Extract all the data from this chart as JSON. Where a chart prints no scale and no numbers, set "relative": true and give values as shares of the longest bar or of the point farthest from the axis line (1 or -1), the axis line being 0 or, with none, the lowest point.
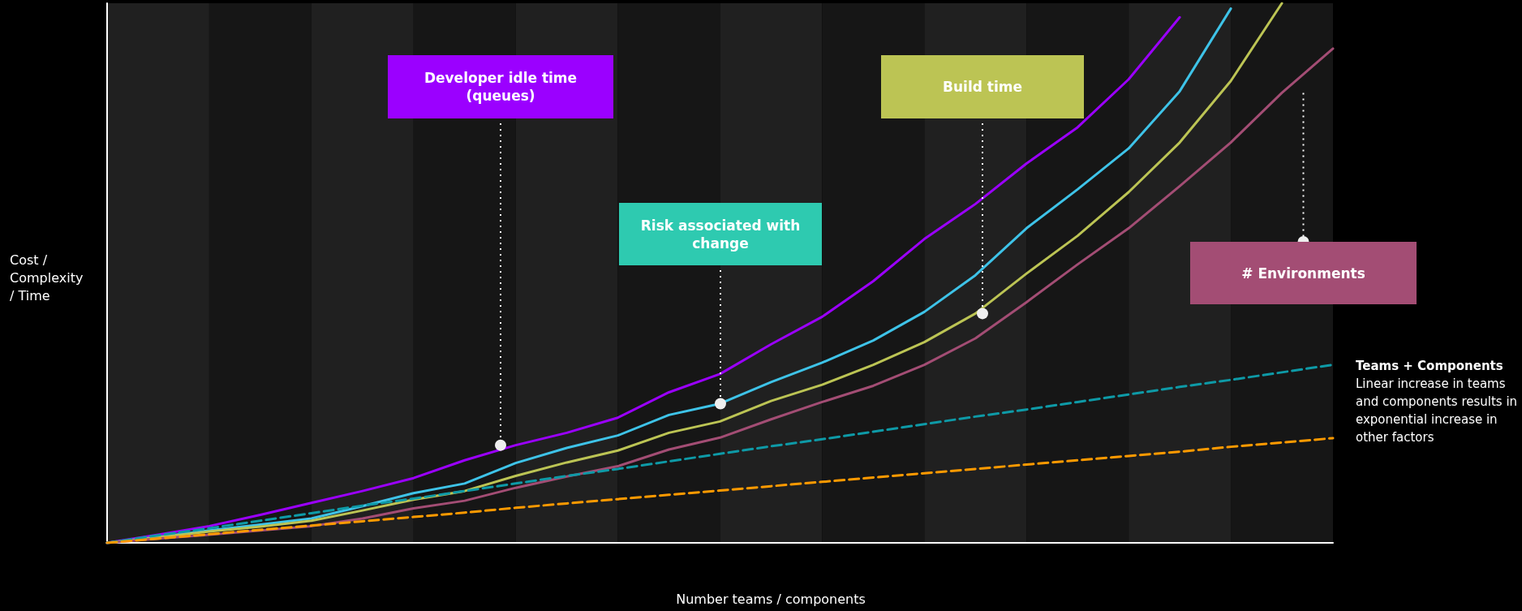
{
  "chart_data": {
    "type": "line",
    "relative": true,
    "xlabel": "Number teams / components",
    "ylabel": "Cost / Complexity / Time",
    "marker": "none",
    "categories": [
      null,
      null,
      null,
      null,
      null,
      null,
      null,
      null,
      null,
      null,
      null,
      null,
      null,
      null,
      null,
      null,
      null,
      null,
      null,
      null,
      null,
      null,
      null,
      null,
      null
    ],
    "series": [
      {
        "color": "#9b00ff",
        "values": [
          0,
          0.015,
          0.031,
          0.052,
          0.074,
          0.096,
          0.12,
          0.153,
          0.181,
          0.204,
          0.232,
          0.279,
          0.313,
          0.368,
          0.419,
          0.485,
          0.563,
          0.628,
          0.703,
          0.77,
          0.859,
          0.974,
          null,
          null,
          null
        ]
      },
      {
        "color": "#3ec3e8",
        "values": [
          0,
          0.011,
          0.023,
          0.034,
          0.045,
          0.068,
          0.092,
          0.11,
          0.148,
          0.176,
          0.199,
          0.237,
          0.258,
          0.298,
          0.334,
          0.375,
          0.428,
          0.496,
          0.583,
          0.655,
          0.731,
          0.837,
          0.99,
          null,
          null
        ]
      },
      {
        "color": "#bcc454",
        "values": [
          0,
          0.01,
          0.021,
          0.03,
          0.041,
          0.06,
          0.08,
          0.096,
          0.124,
          0.149,
          0.171,
          0.204,
          0.225,
          0.263,
          0.293,
          0.33,
          0.372,
          0.425,
          0.499,
          0.569,
          0.65,
          0.742,
          0.856,
          1,
          null
        ]
      },
      {
        "color": "#a34d74",
        "values": [
          0,
          0.008,
          0.015,
          0.023,
          0.031,
          0.045,
          0.064,
          0.078,
          0.102,
          0.123,
          0.142,
          0.173,
          0.195,
          0.229,
          0.261,
          0.291,
          0.33,
          0.379,
          0.446,
          0.516,
          0.583,
          0.661,
          0.742,
          0.834,
          0.916
        ]
      },
      {
        "color": "#0e9aa7",
        "line_style": "dashed",
        "values": [
          0,
          0.014,
          0.027,
          0.041,
          0.055,
          0.069,
          0.082,
          0.096,
          0.11,
          0.124,
          0.137,
          0.151,
          0.165,
          0.179,
          0.192,
          0.206,
          0.22,
          0.234,
          0.247,
          0.261,
          0.275,
          0.289,
          0.302,
          0.316,
          0.33
        ]
      },
      {
        "color": "#ff9a00",
        "line_style": "dashed",
        "values": [
          0,
          0.008,
          0.016,
          0.024,
          0.032,
          0.04,
          0.048,
          0.056,
          0.065,
          0.073,
          0.081,
          0.089,
          0.097,
          0.105,
          0.113,
          0.121,
          0.129,
          0.137,
          0.145,
          0.153,
          0.161,
          0.169,
          0.178,
          0.186,
          0.194
        ]
      }
    ],
    "annotations": [
      "Developer idle time (queues)",
      "Risk associated with change",
      "Build time",
      "# Environments",
      "Teams + Components",
      "Linear increase in teams and components results in exponential increase in other factors"
    ]
  }
}
